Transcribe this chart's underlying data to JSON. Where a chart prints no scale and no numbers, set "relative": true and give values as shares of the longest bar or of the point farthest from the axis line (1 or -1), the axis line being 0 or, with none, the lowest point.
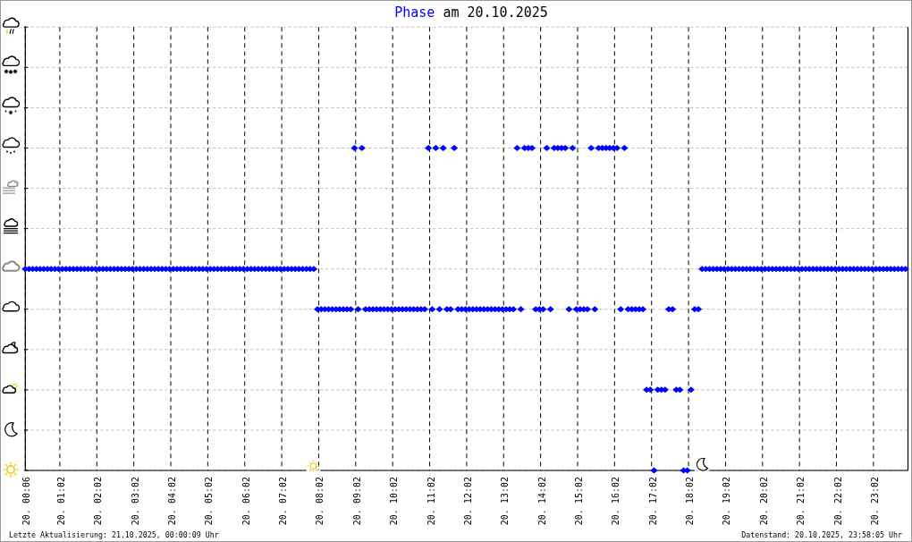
{
  "chart_data": {
    "type": "scatter",
    "title": "am 20.10.2025",
    "relative": true,
    "x": [
      "2025-10-20T00:06",
      "2025-10-20T00:12",
      "2025-10-20T00:18",
      "2025-10-20T00:24",
      "2025-10-20T00:30",
      "2025-10-20T00:36",
      "2025-10-20T00:42",
      "2025-10-20T00:48",
      "2025-10-20T00:54",
      "2025-10-20T01:00",
      "2025-10-20T01:06",
      "2025-10-20T01:12",
      "2025-10-20T01:18",
      "2025-10-20T01:24",
      "2025-10-20T01:30",
      "2025-10-20T01:36",
      "2025-10-20T01:42",
      "2025-10-20T01:48",
      "2025-10-20T01:54",
      "2025-10-20T02:00",
      "2025-10-20T02:06",
      "2025-10-20T02:12",
      "2025-10-20T02:18",
      "2025-10-20T02:24",
      "2025-10-20T02:30",
      "2025-10-20T02:36",
      "2025-10-20T02:42",
      "2025-10-20T02:48",
      "2025-10-20T02:54",
      "2025-10-20T03:00",
      "2025-10-20T03:06",
      "2025-10-20T03:12",
      "2025-10-20T03:18",
      "2025-10-20T03:24",
      "2025-10-20T03:30",
      "2025-10-20T03:36",
      "2025-10-20T03:42",
      "2025-10-20T03:48",
      "2025-10-20T03:54",
      "2025-10-20T04:00",
      "2025-10-20T04:06",
      "2025-10-20T04:12",
      "2025-10-20T04:18",
      "2025-10-20T04:24",
      "2025-10-20T04:30",
      "2025-10-20T04:36",
      "2025-10-20T04:42",
      "2025-10-20T04:48",
      "2025-10-20T04:54",
      "2025-10-20T05:00",
      "2025-10-20T05:06",
      "2025-10-20T05:12",
      "2025-10-20T05:18",
      "2025-10-20T05:24",
      "2025-10-20T05:30",
      "2025-10-20T05:36",
      "2025-10-20T05:42",
      "2025-10-20T05:48",
      "2025-10-20T05:54",
      "2025-10-20T06:00",
      "2025-10-20T06:06",
      "2025-10-20T06:12",
      "2025-10-20T06:18",
      "2025-10-20T06:24",
      "2025-10-20T06:30",
      "2025-10-20T06:36",
      "2025-10-20T06:42",
      "2025-10-20T06:48",
      "2025-10-20T06:54",
      "2025-10-20T07:00",
      "2025-10-20T07:06",
      "2025-10-20T07:12",
      "2025-10-20T07:18",
      "2025-10-20T07:24",
      "2025-10-20T07:30",
      "2025-10-20T07:36",
      "2025-10-20T07:42",
      "2025-10-20T07:48",
      "2025-10-20T07:54",
      "2025-10-20T08:00",
      "2025-10-20T08:06",
      "2025-10-20T08:12",
      "2025-10-20T08:18",
      "2025-10-20T08:24",
      "2025-10-20T08:30",
      "2025-10-20T08:36",
      "2025-10-20T08:42",
      "2025-10-20T08:48",
      "2025-10-20T08:54",
      "2025-10-20T09:00",
      "2025-10-20T09:06",
      "2025-10-20T09:12",
      "2025-10-20T09:18",
      "2025-10-20T09:24",
      "2025-10-20T09:30",
      "2025-10-20T09:36",
      "2025-10-20T09:42",
      "2025-10-20T09:48",
      "2025-10-20T09:54",
      "2025-10-20T10:00",
      "2025-10-20T10:06",
      "2025-10-20T10:12",
      "2025-10-20T10:18",
      "2025-10-20T10:24",
      "2025-10-20T10:30",
      "2025-10-20T10:36",
      "2025-10-20T10:42",
      "2025-10-20T10:48",
      "2025-10-20T10:54",
      "2025-10-20T11:00",
      "2025-10-20T11:06",
      "2025-10-20T11:12",
      "2025-10-20T11:18",
      "2025-10-20T11:24",
      "2025-10-20T11:30",
      "2025-10-20T11:36",
      "2025-10-20T11:42",
      "2025-10-20T11:48",
      "2025-10-20T11:54",
      "2025-10-20T12:00",
      "2025-10-20T12:06",
      "2025-10-20T12:12",
      "2025-10-20T12:18",
      "2025-10-20T12:24",
      "2025-10-20T12:30",
      "2025-10-20T12:36",
      "2025-10-20T12:42",
      "2025-10-20T12:48",
      "2025-10-20T12:54",
      "2025-10-20T13:00",
      "2025-10-20T13:06",
      "2025-10-20T13:12",
      "2025-10-20T13:18",
      "2025-10-20T13:24",
      "2025-10-20T13:30",
      "2025-10-20T13:36",
      "2025-10-20T13:42",
      "2025-10-20T13:48",
      "2025-10-20T13:54",
      "2025-10-20T14:00",
      "2025-10-20T14:06",
      "2025-10-20T14:12",
      "2025-10-20T14:18",
      "2025-10-20T14:24",
      "2025-10-20T14:30",
      "2025-10-20T14:36",
      "2025-10-20T14:42",
      "2025-10-20T14:48",
      "2025-10-20T14:54",
      "2025-10-20T15:00",
      "2025-10-20T15:06",
      "2025-10-20T15:12",
      "2025-10-20T15:18",
      "2025-10-20T15:24",
      "2025-10-20T15:30",
      "2025-10-20T15:36",
      "2025-10-20T15:42",
      "2025-10-20T15:48",
      "2025-10-20T15:54",
      "2025-10-20T16:00",
      "2025-10-20T16:06",
      "2025-10-20T16:12",
      "2025-10-20T16:18",
      "2025-10-20T16:24",
      "2025-10-20T16:30",
      "2025-10-20T16:36",
      "2025-10-20T16:42",
      "2025-10-20T16:48",
      "2025-10-20T16:54",
      "2025-10-20T17:00",
      "2025-10-20T17:06",
      "2025-10-20T17:12",
      "2025-10-20T17:18",
      "2025-10-20T17:24",
      "2025-10-20T17:30",
      "2025-10-20T17:36",
      "2025-10-20T17:42",
      "2025-10-20T17:48",
      "2025-10-20T17:54",
      "2025-10-20T18:00",
      "2025-10-20T18:06",
      "2025-10-20T18:12",
      "2025-10-20T18:18",
      "2025-10-20T18:24",
      "2025-10-20T18:30",
      "2025-10-20T18:36",
      "2025-10-20T18:42",
      "2025-10-20T18:48",
      "2025-10-20T18:54",
      "2025-10-20T19:00",
      "2025-10-20T19:06",
      "2025-10-20T19:12",
      "2025-10-20T19:18",
      "2025-10-20T19:24",
      "2025-10-20T19:30",
      "2025-10-20T19:36",
      "2025-10-20T19:42",
      "2025-10-20T19:48",
      "2025-10-20T19:54",
      "2025-10-20T20:00",
      "2025-10-20T20:06",
      "2025-10-20T20:12",
      "2025-10-20T20:18",
      "2025-10-20T20:24",
      "2025-10-20T20:30",
      "2025-10-20T20:36",
      "2025-10-20T20:42",
      "2025-10-20T20:48",
      "2025-10-20T20:54",
      "2025-10-20T21:00",
      "2025-10-20T21:06",
      "2025-10-20T21:12",
      "2025-10-20T21:18",
      "2025-10-20T21:24",
      "2025-10-20T21:30",
      "2025-10-20T21:36",
      "2025-10-20T21:42",
      "2025-10-20T21:48",
      "2025-10-20T21:54",
      "2025-10-20T22:00",
      "2025-10-20T22:06",
      "2025-10-20T22:12",
      "2025-10-20T22:18",
      "2025-10-20T22:24",
      "2025-10-20T22:30",
      "2025-10-20T22:36",
      "2025-10-20T22:42",
      "2025-10-20T22:48",
      "2025-10-20T22:54",
      "2025-10-20T23:00",
      "2025-10-20T23:06",
      "2025-10-20T23:12",
      "2025-10-20T23:18",
      "2025-10-20T23:24",
      "2025-10-20T23:30",
      "2025-10-20T23:36",
      "2025-10-20T23:42",
      "2025-10-20T23:48",
      "2025-10-20T23:54"
    ],
    "series": [
      {
        "name": "Phase",
        "color": "#0000ff",
        "values": [
          0.625,
          0.625,
          0.625,
          0.625,
          0.625,
          0.625,
          0.625,
          0.625,
          0.625,
          0.625,
          0.625,
          0.625,
          0.625,
          0.625,
          0.625,
          0.625,
          0.625,
          0.625,
          0.625,
          0.625,
          0.625,
          0.625,
          0.625,
          0.625,
          0.625,
          0.625,
          0.625,
          0.625,
          0.625,
          0.625,
          0.625,
          0.625,
          0.625,
          0.625,
          0.625,
          0.625,
          0.625,
          0.625,
          0.625,
          0.625,
          0.625,
          0.625,
          0.625,
          0.625,
          0.625,
          0.625,
          0.625,
          0.625,
          0.625,
          0.625,
          0.625,
          0.625,
          0.625,
          0.625,
          0.625,
          0.625,
          0.625,
          0.625,
          0.625,
          0.625,
          0.625,
          0.625,
          0.625,
          0.625,
          0.625,
          0.625,
          0.625,
          0.625,
          0.625,
          0.625,
          0.625,
          0.625,
          0.625,
          0.625,
          0.625,
          0.625,
          0.625,
          0.625,
          0.625,
          0.5,
          0.5,
          0.5,
          0.5,
          0.5,
          0.5,
          0.5,
          0.5,
          0.5,
          0.5,
          1,
          0.5,
          1,
          0.5,
          0.5,
          0.5,
          0.5,
          0.5,
          0.5,
          0.5,
          0.5,
          0.5,
          0.5,
          0.5,
          0.5,
          0.5,
          0.5,
          0.5,
          0.5,
          0.5,
          1,
          0.5,
          1,
          0.5,
          1,
          0.5,
          0.5,
          1,
          0.5,
          0.5,
          0.5,
          0.5,
          0.5,
          0.5,
          0.5,
          0.5,
          0.5,
          0.5,
          0.5,
          0.5,
          0.5,
          0.5,
          0.5,
          0.5,
          1,
          0.5,
          1,
          1,
          1,
          0.5,
          0.5,
          0.5,
          1,
          0.5,
          1,
          1,
          1,
          1,
          0.5,
          1,
          0.5,
          0.5,
          0.5,
          0.5,
          1,
          0.5,
          1,
          1,
          1,
          1,
          1,
          1,
          0.5,
          1,
          0.5,
          0.5,
          0.5,
          0.5,
          0.5,
          0.25,
          0.25,
          0,
          0.25,
          0.25,
          0.25,
          0.5,
          0.5,
          0.25,
          0.25,
          0,
          0,
          0.25,
          0.5,
          0.5,
          0.625,
          0.625,
          0.625,
          0.625,
          0.625,
          0.625,
          0.625,
          0.625,
          0.625,
          0.625,
          0.625,
          0.625,
          0.625,
          0.625,
          0.625,
          0.625,
          0.625,
          0.625,
          0.625,
          0.625,
          0.625,
          0.625,
          0.625,
          0.625,
          0.625,
          0.625,
          0.625,
          0.625,
          0.625,
          0.625,
          0.625,
          0.625,
          0.625,
          0.625,
          0.625,
          0.625,
          0.625,
          0.625,
          0.625,
          0.625,
          0.625,
          0.625,
          0.625,
          0.625,
          0.625,
          0.625,
          0.625,
          0.625,
          0.625,
          0.625,
          0.625,
          0.625,
          0.625,
          0.625,
          0.625,
          0.625
        ]
      }
    ],
    "xlim": [
      "2025-10-20T00:06",
      "2025-10-20T23:58"
    ],
    "xticks": [
      {
        "value": "2025-10-20T00:06",
        "label": "20. 00:06"
      },
      {
        "value": "2025-10-20T01:02",
        "label": "20. 01:02"
      },
      {
        "value": "2025-10-20T02:02",
        "label": "20. 02:02"
      },
      {
        "value": "2025-10-20T03:02",
        "label": "20. 03:02"
      },
      {
        "value": "2025-10-20T04:02",
        "label": "20. 04:02"
      },
      {
        "value": "2025-10-20T05:02",
        "label": "20. 05:02"
      },
      {
        "value": "2025-10-20T06:02",
        "label": "20. 06:02"
      },
      {
        "value": "2025-10-20T07:02",
        "label": "20. 07:02"
      },
      {
        "value": "2025-10-20T08:02",
        "label": "20. 08:02"
      },
      {
        "value": "2025-10-20T09:02",
        "label": "20. 09:02"
      },
      {
        "value": "2025-10-20T10:02",
        "label": "20. 10:02"
      },
      {
        "value": "2025-10-20T11:02",
        "label": "20. 11:02"
      },
      {
        "value": "2025-10-20T12:02",
        "label": "20. 12:02"
      },
      {
        "value": "2025-10-20T13:02",
        "label": "20. 13:02"
      },
      {
        "value": "2025-10-20T14:02",
        "label": "20. 14:02"
      },
      {
        "value": "2025-10-20T15:02",
        "label": "20. 15:02"
      },
      {
        "value": "2025-10-20T16:02",
        "label": "20. 16:02"
      },
      {
        "value": "2025-10-20T17:02",
        "label": "20. 17:02"
      },
      {
        "value": "2025-10-20T18:02",
        "label": "20. 18:02"
      },
      {
        "value": "2025-10-20T19:02",
        "label": "20. 19:02"
      },
      {
        "value": "2025-10-20T20:02",
        "label": "20. 20:02"
      },
      {
        "value": "2025-10-20T21:02",
        "label": "20. 21:02"
      },
      {
        "value": "2025-10-20T22:02",
        "label": "20. 22:02"
      },
      {
        "value": "2025-10-20T23:02",
        "label": "20. 23:02"
      }
    ],
    "grid": true,
    "marker": "diamond",
    "annotations": [
      "Letzte Aktualisierung: 21.10.2025, 00:00:09 Uhr",
      "Datenstand: 20.10.2025, 23:58:05 Uhr"
    ]
  }
}
